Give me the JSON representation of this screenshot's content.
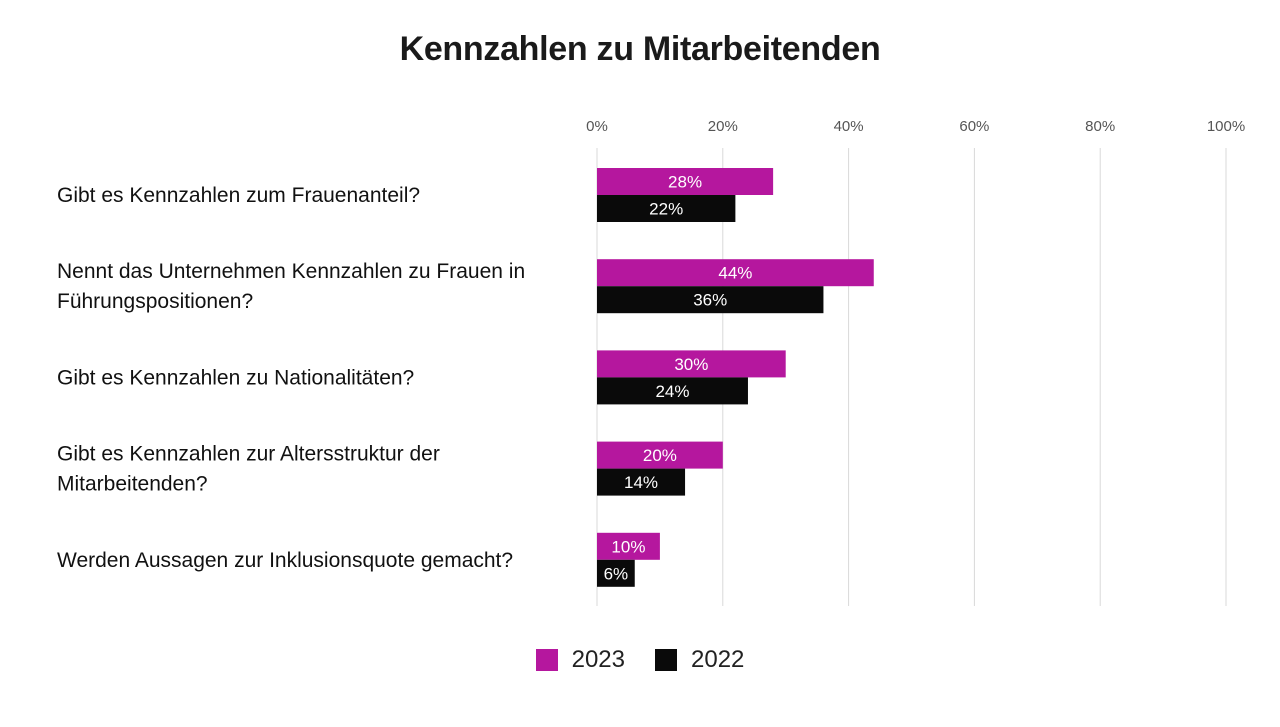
{
  "colors": {
    "series_2023": "#b5179e",
    "series_2022": "#0a0a0a",
    "grid": "#d9d9d9",
    "bar_text": "#ffffff"
  },
  "chart_data": {
    "type": "bar",
    "orientation": "horizontal",
    "title": "Kennzahlen zu Mitarbeitenden",
    "categories": [
      [
        "Gibt es Kennzahlen zum Frauenanteil?"
      ],
      [
        "Nennt das Unternehmen Kennzahlen zu Frauen in",
        "Führungspositionen?"
      ],
      [
        "Gibt es Kennzahlen zu Nationalitäten?"
      ],
      [
        "Gibt es Kennzahlen zur Altersstruktur der",
        "Mitarbeitenden?"
      ],
      [
        "Werden Aussagen zur Inklusionsquote gemacht?"
      ]
    ],
    "series": [
      {
        "name": "2023",
        "values": [
          28,
          44,
          30,
          20,
          10
        ],
        "labels": [
          "28%",
          "44%",
          "30%",
          "20%",
          "10%"
        ]
      },
      {
        "name": "2022",
        "values": [
          22,
          36,
          24,
          14,
          6
        ],
        "labels": [
          "22%",
          "36%",
          "24%",
          "14%",
          "6%"
        ]
      }
    ],
    "xlim": [
      0,
      100
    ],
    "xticks": [
      0,
      20,
      40,
      60,
      80,
      100
    ],
    "xtick_labels": [
      "0%",
      "20%",
      "40%",
      "60%",
      "80%",
      "100%"
    ],
    "axis_position": "top",
    "grid": true,
    "legend_position": "bottom"
  }
}
